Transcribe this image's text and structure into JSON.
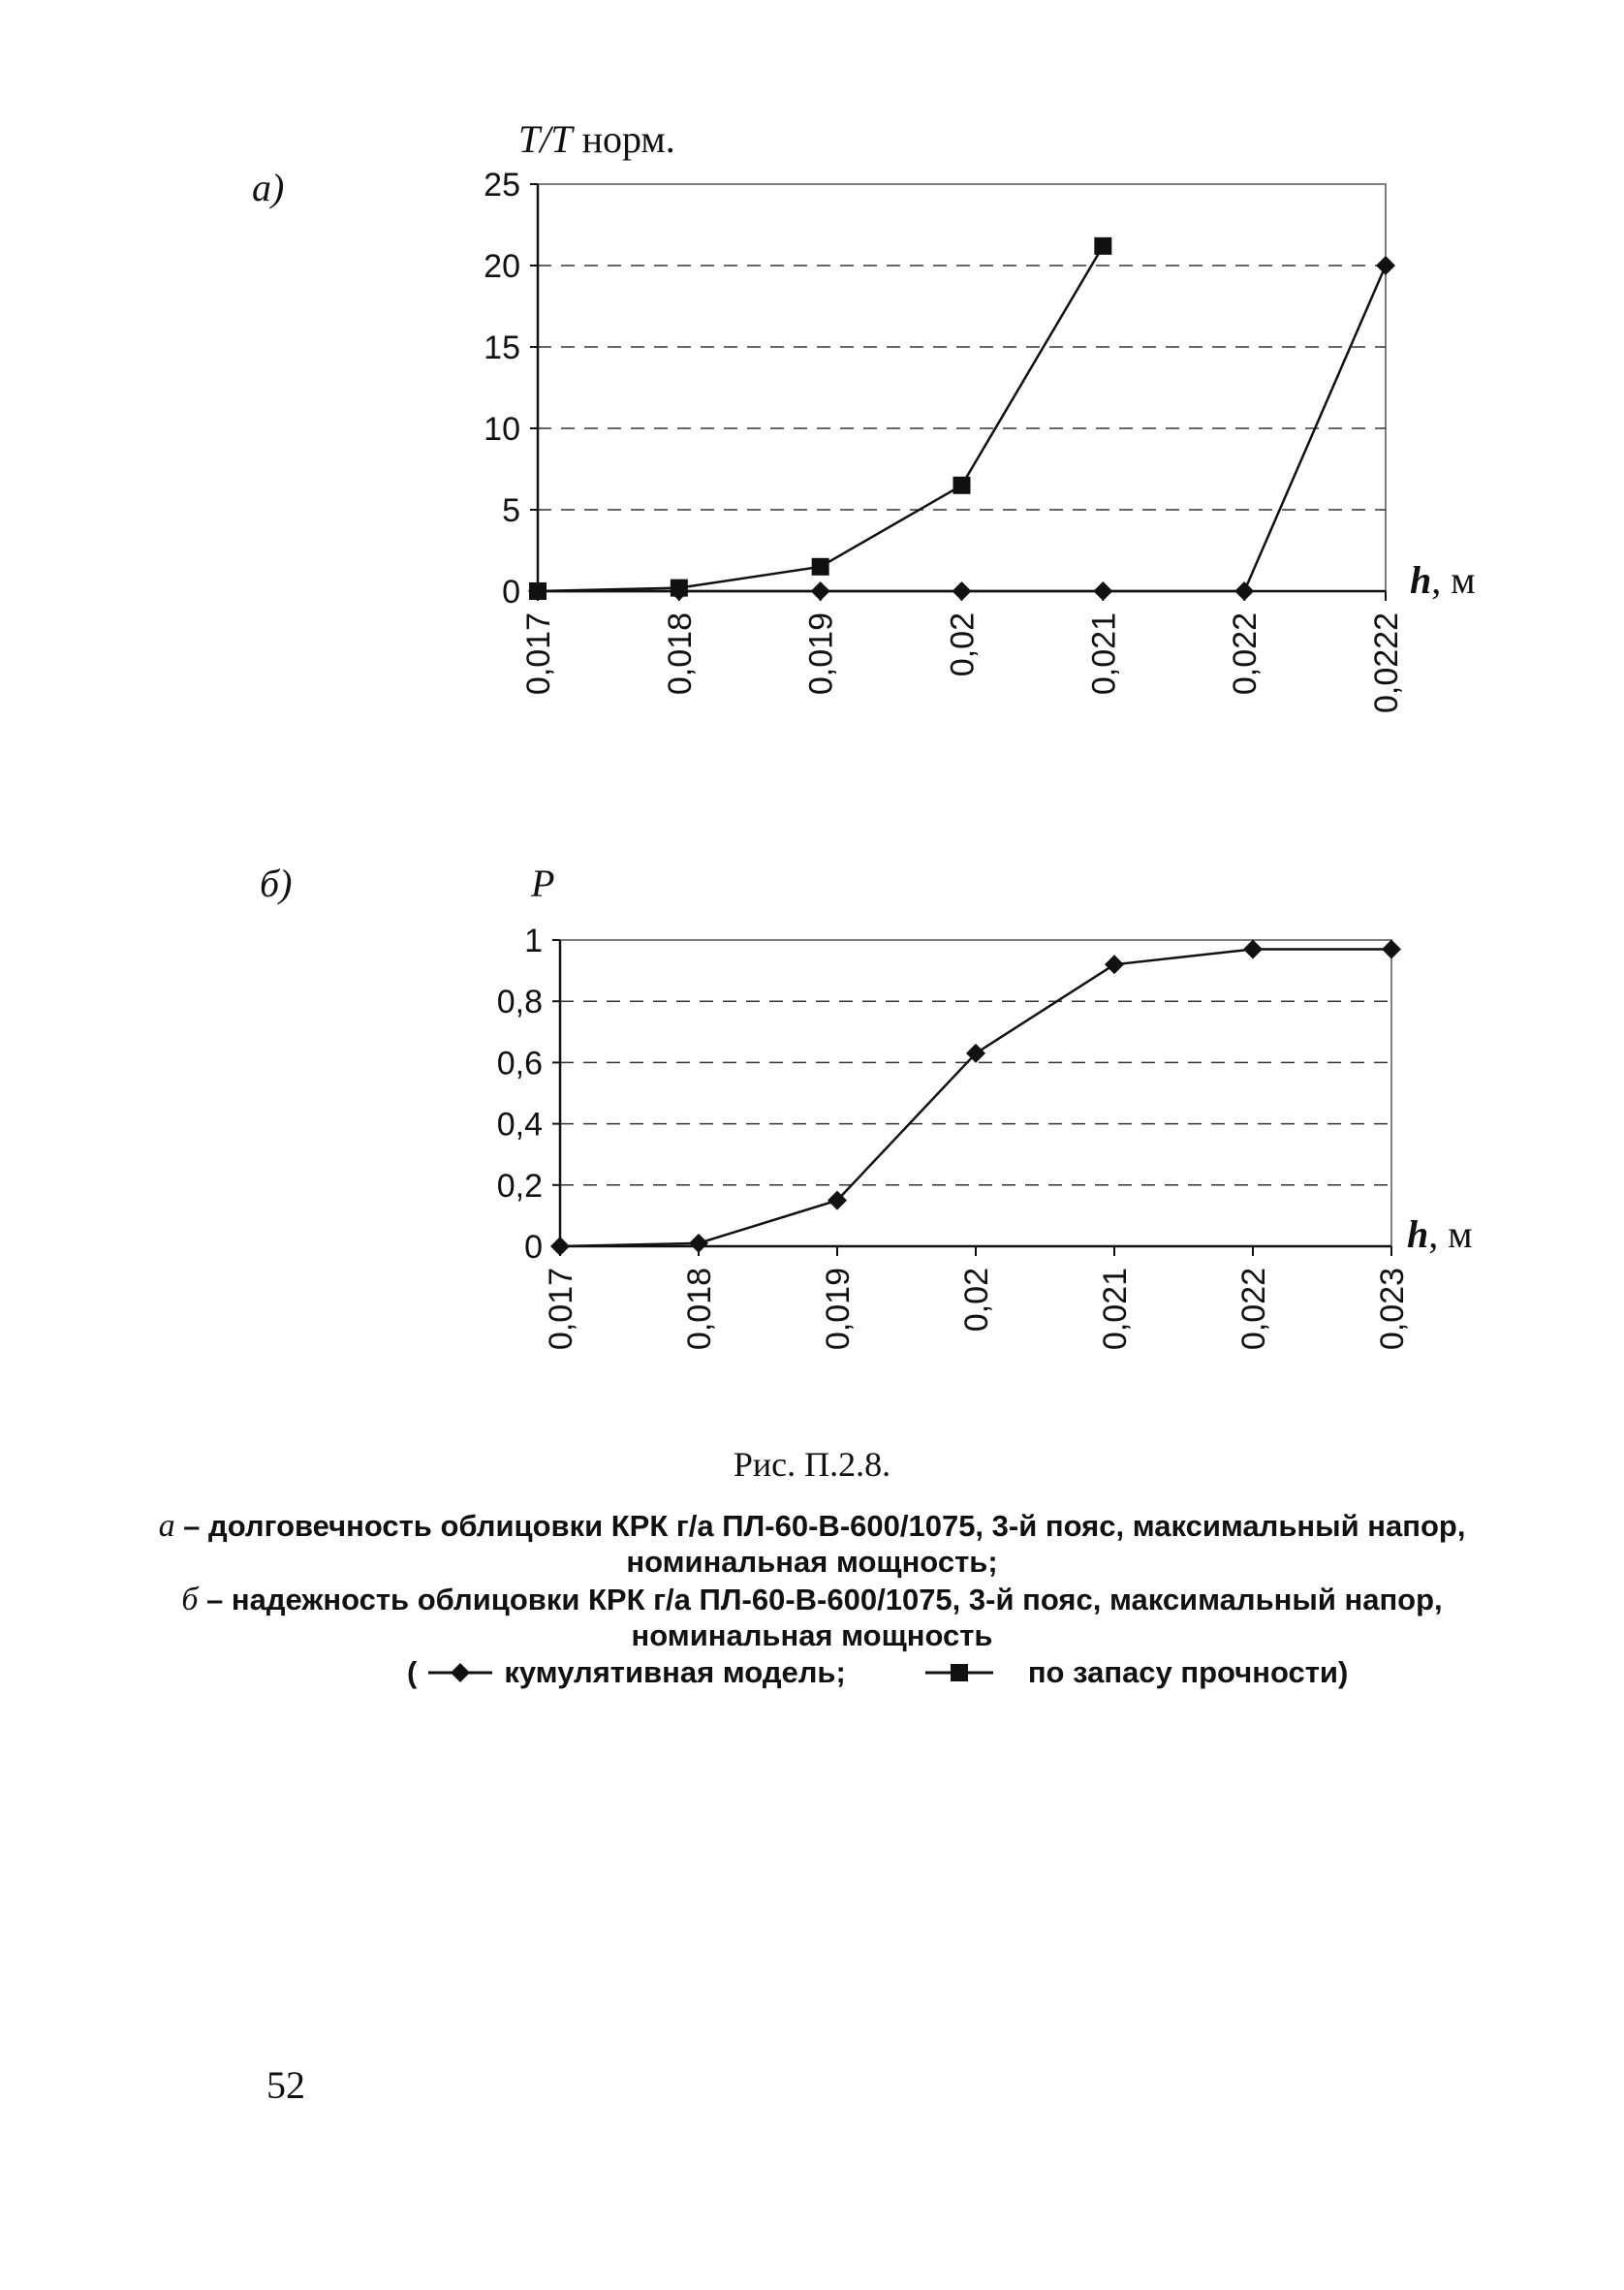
{
  "panels": [
    {
      "letter": "а)",
      "ylabel_italic": "Т/Т",
      "ylabel_rest": " норм.",
      "xlabel_italic": "h",
      "xlabel_rest": ", м"
    },
    {
      "letter": "б)",
      "ylabel_italic": "Р",
      "ylabel_rest": "",
      "xlabel_italic": "h",
      "xlabel_rest": ", м"
    }
  ],
  "chart_data": [
    {
      "type": "line",
      "categories": [
        "0,017",
        "0,018",
        "0,019",
        "0,02",
        "0,021",
        "0,022",
        "0,0222"
      ],
      "ylim": [
        0,
        25
      ],
      "yticks": [
        "0",
        "5",
        "10",
        "15",
        "20",
        "25"
      ],
      "yticks_values": [
        0,
        5,
        10,
        15,
        20,
        25
      ],
      "grid": "dashed-horizontal",
      "series": [
        {
          "marker": "diamond",
          "values": [
            0,
            0,
            0,
            0,
            0,
            0,
            20
          ]
        },
        {
          "marker": "square",
          "values": [
            0,
            0.2,
            1.5,
            6.5,
            21.2,
            null,
            null
          ]
        }
      ]
    },
    {
      "type": "line",
      "categories": [
        "0,017",
        "0,018",
        "0,019",
        "0,02",
        "0,021",
        "0,022",
        "0,023"
      ],
      "ylim": [
        0,
        1
      ],
      "yticks": [
        "0",
        "0,2",
        "0,4",
        "0,6",
        "0,8",
        "1"
      ],
      "yticks_values": [
        0,
        0.2,
        0.4,
        0.6,
        0.8,
        1
      ],
      "grid": "dashed-horizontal",
      "series": [
        {
          "marker": "diamond",
          "values": [
            0,
            0.01,
            0.15,
            0.63,
            0.92,
            0.97,
            0.97
          ]
        }
      ]
    }
  ],
  "caption": {
    "title": "Рис. П.2.8.",
    "a_lead": "а",
    "a_text": " – долговечность облицовки КРК г/а ПЛ-60-В-600/1075, 3-й пояс, максимальный напор,",
    "a_text2": "номинальная мощность;",
    "b_lead": "б",
    "b_text": " – надежность облицовки КРК г/а ПЛ-60-В-600/1075, 3-й пояс, максимальный напор,",
    "b_text2": "номинальная мощность"
  },
  "legend": {
    "open": "(",
    "cumulative": "кумулятивная модель;",
    "strength": "по запасу прочности)"
  },
  "page_number": "52"
}
